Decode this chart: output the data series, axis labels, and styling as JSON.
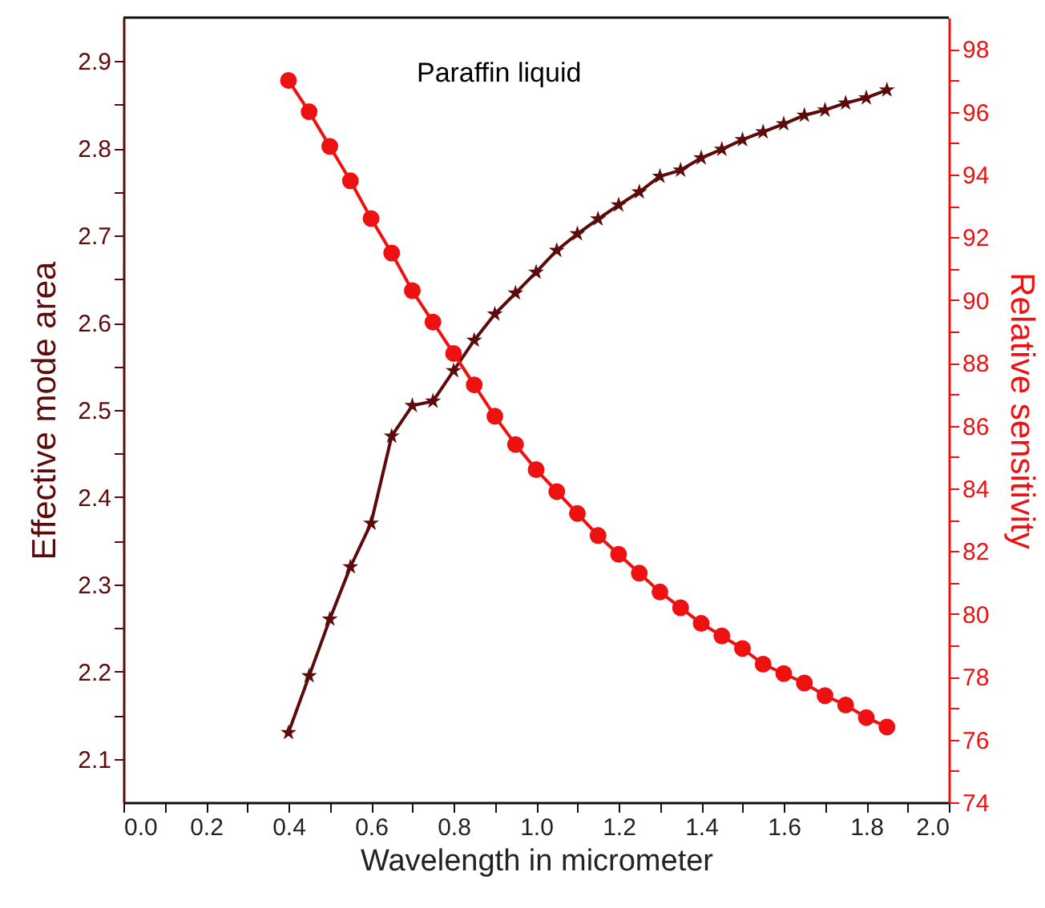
{
  "chart_data": {
    "type": "line",
    "xlabel": "Wavelength in micrometer",
    "ylabel": "Effective mode area",
    "y2label": "Relative sensitivity",
    "annotations": [
      "Paraffin liquid"
    ],
    "x": [
      0.4,
      0.45,
      0.5,
      0.55,
      0.6,
      0.65,
      0.7,
      0.75,
      0.8,
      0.85,
      0.9,
      0.95,
      1.0,
      1.05,
      1.1,
      1.15,
      1.2,
      1.25,
      1.3,
      1.35,
      1.4,
      1.45,
      1.5,
      1.55,
      1.6,
      1.65,
      1.7,
      1.75,
      1.8,
      1.85
    ],
    "series": [
      {
        "color": "#5c0a0a",
        "marker": "star",
        "values": [
          2.13,
          2.195,
          2.26,
          2.32,
          2.37,
          2.47,
          2.505,
          2.51,
          2.545,
          2.58,
          2.61,
          2.634,
          2.658,
          2.683,
          2.702,
          2.719,
          2.735,
          2.75,
          2.768,
          2.775,
          2.789,
          2.799,
          2.81,
          2.819,
          2.828,
          2.838,
          2.844,
          2.852,
          2.858,
          2.867
        ]
      },
      {
        "color": "#ee1111",
        "marker": "circle",
        "axis": "y2",
        "values": [
          97.0,
          96.0,
          94.9,
          93.8,
          92.6,
          91.5,
          90.3,
          89.3,
          88.3,
          87.3,
          86.3,
          85.4,
          84.6,
          83.9,
          83.2,
          82.5,
          81.9,
          81.3,
          80.7,
          80.2,
          79.7,
          79.3,
          78.9,
          78.4,
          78.1,
          77.8,
          77.4,
          77.1,
          76.7,
          76.4
        ]
      }
    ],
    "xlim": [
      0.0,
      2.0
    ],
    "xticks": [
      {
        "value": 0,
        "label": "0.0"
      },
      {
        "value": 0.1,
        "label": null
      },
      {
        "value": 0.2,
        "label": "0.2"
      },
      {
        "value": 0.3,
        "label": null
      },
      {
        "value": 0.4,
        "label": "0.4"
      },
      {
        "value": 0.5,
        "label": null
      },
      {
        "value": 0.6,
        "label": "0.6"
      },
      {
        "value": 0.7,
        "label": null
      },
      {
        "value": 0.8,
        "label": "0.8"
      },
      {
        "value": 0.9,
        "label": null
      },
      {
        "value": 1.0,
        "label": "1.0"
      },
      {
        "value": 1.1,
        "label": null
      },
      {
        "value": 1.2,
        "label": "1.2"
      },
      {
        "value": 1.3,
        "label": null
      },
      {
        "value": 1.4,
        "label": "1.4"
      },
      {
        "value": 1.5,
        "label": null
      },
      {
        "value": 1.6,
        "label": "1.6"
      },
      {
        "value": 1.7,
        "label": null
      },
      {
        "value": 1.8,
        "label": "1.8"
      },
      {
        "value": 1.9,
        "label": null
      },
      {
        "value": 2.0,
        "label": "2.0"
      }
    ],
    "ylim": [
      2.05,
      2.95
    ],
    "yticks": [
      2.1,
      {
        "value": 2.15,
        "label": null
      },
      2.2,
      {
        "value": 2.25,
        "label": null
      },
      2.3,
      {
        "value": 2.35,
        "label": null
      },
      2.4,
      {
        "value": 2.45,
        "label": null
      },
      2.5,
      {
        "value": 2.55,
        "label": null
      },
      2.6,
      {
        "value": 2.65,
        "label": null
      },
      2.7,
      {
        "value": 2.75,
        "label": null
      },
      2.8,
      {
        "value": 2.85,
        "label": null
      },
      2.9
    ],
    "y2lim": [
      74,
      99
    ],
    "y2ticks": [
      74,
      {
        "value": 75,
        "label": null
      },
      76,
      {
        "value": 77,
        "label": null
      },
      78,
      {
        "value": 79,
        "label": null
      },
      80,
      {
        "value": 81,
        "label": null
      },
      82,
      {
        "value": 83,
        "label": null
      },
      84,
      {
        "value": 85,
        "label": null
      },
      86,
      {
        "value": 87,
        "label": null
      },
      88,
      {
        "value": 89,
        "label": null
      },
      90,
      {
        "value": 91,
        "label": null
      },
      92,
      {
        "value": 93,
        "label": null
      },
      94,
      {
        "value": 95,
        "label": null
      },
      96,
      {
        "value": 97,
        "label": null
      },
      98
    ],
    "grid": false,
    "line_style": "solid"
  }
}
